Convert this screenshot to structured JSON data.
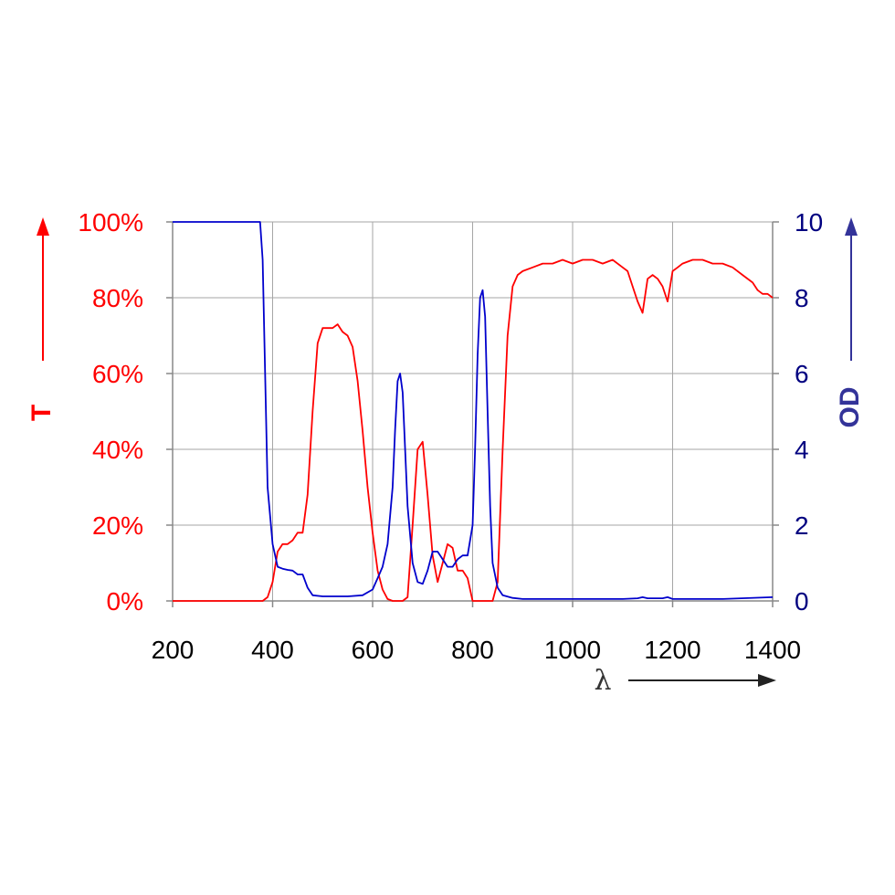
{
  "chart_data": {
    "type": "line",
    "title": "",
    "xlabel": "λ",
    "ylabel_left": "T",
    "ylabel_right": "OD",
    "xlim": [
      200,
      1400
    ],
    "ylim_left": [
      0,
      100
    ],
    "ylim_right": [
      0,
      10
    ],
    "x_ticks": [
      "200",
      "400",
      "600",
      "800",
      "1000",
      "1200",
      "1400"
    ],
    "left_ticks": [
      "0%",
      "20%",
      "40%",
      "60%",
      "80%",
      "100%"
    ],
    "right_ticks": [
      "0",
      "2",
      "4",
      "6",
      "8",
      "10"
    ],
    "grid": true,
    "colors": {
      "transmission": "#ff0000",
      "optical_density": "#0000cc",
      "left_axis_label": "#ff0000",
      "right_axis_tick": "#000080",
      "right_axis_arrow": "#333399",
      "grid": "#a6a6a6",
      "x_arrow": "#222222"
    },
    "series": [
      {
        "axis": "left",
        "x": [
          200,
          380,
          390,
          400,
          410,
          420,
          430,
          440,
          450,
          460,
          470,
          480,
          490,
          500,
          510,
          520,
          530,
          540,
          550,
          560,
          570,
          580,
          590,
          600,
          610,
          620,
          630,
          640,
          660,
          670,
          680,
          690,
          700,
          710,
          720,
          730,
          740,
          750,
          760,
          770,
          780,
          790,
          800,
          810,
          820,
          830,
          840,
          850,
          860,
          870,
          880,
          890,
          900,
          920,
          940,
          960,
          980,
          1000,
          1020,
          1040,
          1060,
          1080,
          1100,
          1110,
          1120,
          1130,
          1140,
          1150,
          1160,
          1170,
          1180,
          1190,
          1200,
          1210,
          1220,
          1240,
          1260,
          1280,
          1300,
          1320,
          1340,
          1360,
          1370,
          1380,
          1390,
          1400
        ],
        "y": [
          0,
          0,
          1,
          5,
          13,
          15,
          15,
          16,
          18,
          18,
          28,
          50,
          68,
          72,
          72,
          72,
          73,
          71,
          70,
          67,
          58,
          45,
          30,
          18,
          8,
          3,
          0.5,
          0,
          0,
          1,
          20,
          40,
          42,
          28,
          12,
          5,
          10,
          15,
          14,
          8,
          8,
          6,
          0,
          0,
          0,
          0,
          0,
          5,
          40,
          70,
          83,
          86,
          87,
          88,
          89,
          89,
          90,
          89,
          90,
          90,
          89,
          90,
          88,
          87,
          83,
          79,
          76,
          85,
          86,
          85,
          83,
          79,
          87,
          88,
          89,
          90,
          90,
          89,
          89,
          88,
          86,
          84,
          82,
          81,
          81,
          80
        ]
      },
      {
        "axis": "right",
        "x": [
          200,
          370,
          375,
          380,
          385,
          390,
          400,
          410,
          420,
          430,
          440,
          450,
          460,
          470,
          480,
          500,
          550,
          580,
          600,
          610,
          620,
          630,
          640,
          645,
          650,
          655,
          660,
          665,
          670,
          680,
          690,
          700,
          710,
          720,
          730,
          740,
          750,
          760,
          770,
          780,
          790,
          800,
          805,
          810,
          815,
          820,
          825,
          830,
          835,
          840,
          850,
          860,
          880,
          900,
          1000,
          1100,
          1130,
          1140,
          1150,
          1180,
          1190,
          1200,
          1300,
          1400
        ],
        "y": [
          10,
          10,
          10,
          9,
          6,
          3,
          1.5,
          0.9,
          0.85,
          0.82,
          0.8,
          0.7,
          0.7,
          0.35,
          0.15,
          0.12,
          0.12,
          0.15,
          0.3,
          0.6,
          0.9,
          1.5,
          3,
          4.5,
          5.8,
          6,
          5.5,
          4,
          2.5,
          1,
          0.5,
          0.45,
          0.8,
          1.3,
          1.3,
          1.1,
          0.9,
          0.9,
          1.1,
          1.2,
          1.2,
          2,
          4,
          6.5,
          8,
          8.2,
          7.5,
          5,
          2.5,
          1,
          0.35,
          0.15,
          0.08,
          0.05,
          0.05,
          0.05,
          0.07,
          0.1,
          0.07,
          0.07,
          0.1,
          0.05,
          0.05,
          0.1
        ]
      }
    ]
  }
}
